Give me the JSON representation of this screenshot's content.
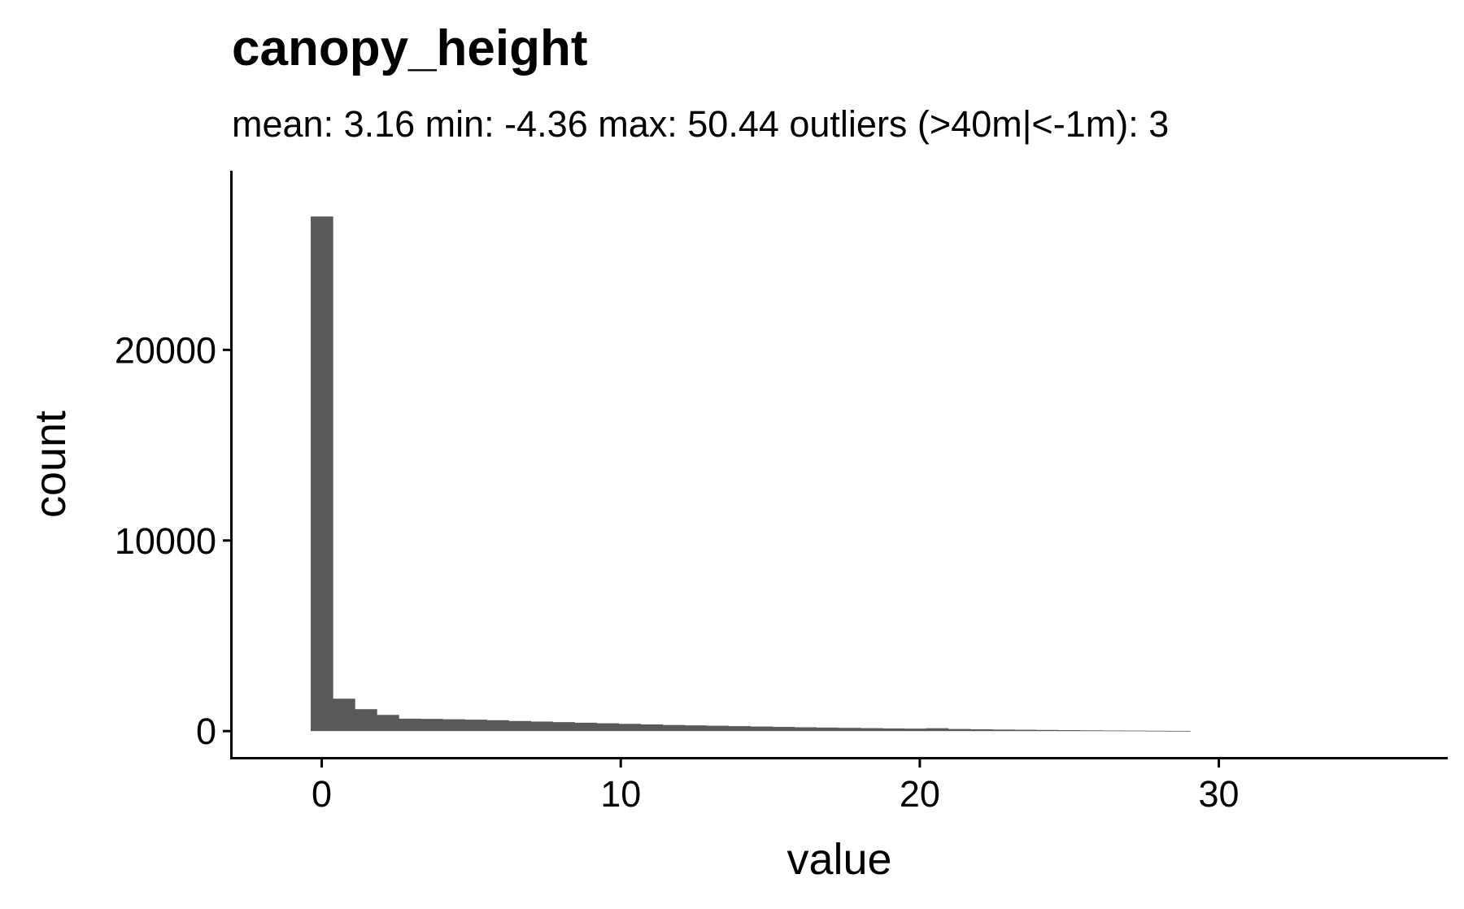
{
  "chart_data": {
    "type": "bar",
    "title": "canopy_height",
    "subtitle": "mean: 3.16   min: -4.36   max: 50.44  outliers (>40m|<-1m): 3",
    "xlabel": "value",
    "ylabel": "count",
    "xlim": [
      -2.98,
      37.6
    ],
    "ylim": [
      -1400,
      29400
    ],
    "x_ticks": [
      0,
      10,
      20,
      30
    ],
    "x_tick_labels": [
      "0",
      "10",
      "20",
      "30"
    ],
    "y_ticks": [
      0,
      10000,
      20000
    ],
    "y_tick_labels": [
      "0",
      "10000",
      "20000"
    ],
    "grid": false,
    "legend": "none",
    "bar_color": "#595959",
    "bin_width": 0.735,
    "bins": [
      {
        "x": 0.0,
        "count": 27000
      },
      {
        "x": 0.735,
        "count": 1700
      },
      {
        "x": 1.47,
        "count": 1150
      },
      {
        "x": 2.205,
        "count": 850
      },
      {
        "x": 2.94,
        "count": 650
      },
      {
        "x": 3.675,
        "count": 640
      },
      {
        "x": 4.41,
        "count": 620
      },
      {
        "x": 5.145,
        "count": 600
      },
      {
        "x": 5.88,
        "count": 570
      },
      {
        "x": 6.615,
        "count": 530
      },
      {
        "x": 7.35,
        "count": 500
      },
      {
        "x": 8.085,
        "count": 470
      },
      {
        "x": 8.82,
        "count": 440
      },
      {
        "x": 9.555,
        "count": 410
      },
      {
        "x": 10.29,
        "count": 380
      },
      {
        "x": 11.025,
        "count": 350
      },
      {
        "x": 11.76,
        "count": 320
      },
      {
        "x": 12.495,
        "count": 300
      },
      {
        "x": 13.23,
        "count": 280
      },
      {
        "x": 13.965,
        "count": 260
      },
      {
        "x": 14.7,
        "count": 240
      },
      {
        "x": 15.435,
        "count": 220
      },
      {
        "x": 16.17,
        "count": 200
      },
      {
        "x": 16.905,
        "count": 185
      },
      {
        "x": 17.64,
        "count": 170
      },
      {
        "x": 18.375,
        "count": 155
      },
      {
        "x": 19.11,
        "count": 140
      },
      {
        "x": 19.845,
        "count": 130
      },
      {
        "x": 20.58,
        "count": 150
      },
      {
        "x": 21.315,
        "count": 110
      },
      {
        "x": 22.05,
        "count": 95
      },
      {
        "x": 22.785,
        "count": 80
      },
      {
        "x": 23.52,
        "count": 70
      },
      {
        "x": 24.255,
        "count": 60
      },
      {
        "x": 24.99,
        "count": 50
      },
      {
        "x": 25.725,
        "count": 40
      },
      {
        "x": 26.46,
        "count": 30
      },
      {
        "x": 27.195,
        "count": 25
      },
      {
        "x": 27.93,
        "count": 15
      },
      {
        "x": 28.665,
        "count": 10
      }
    ]
  }
}
